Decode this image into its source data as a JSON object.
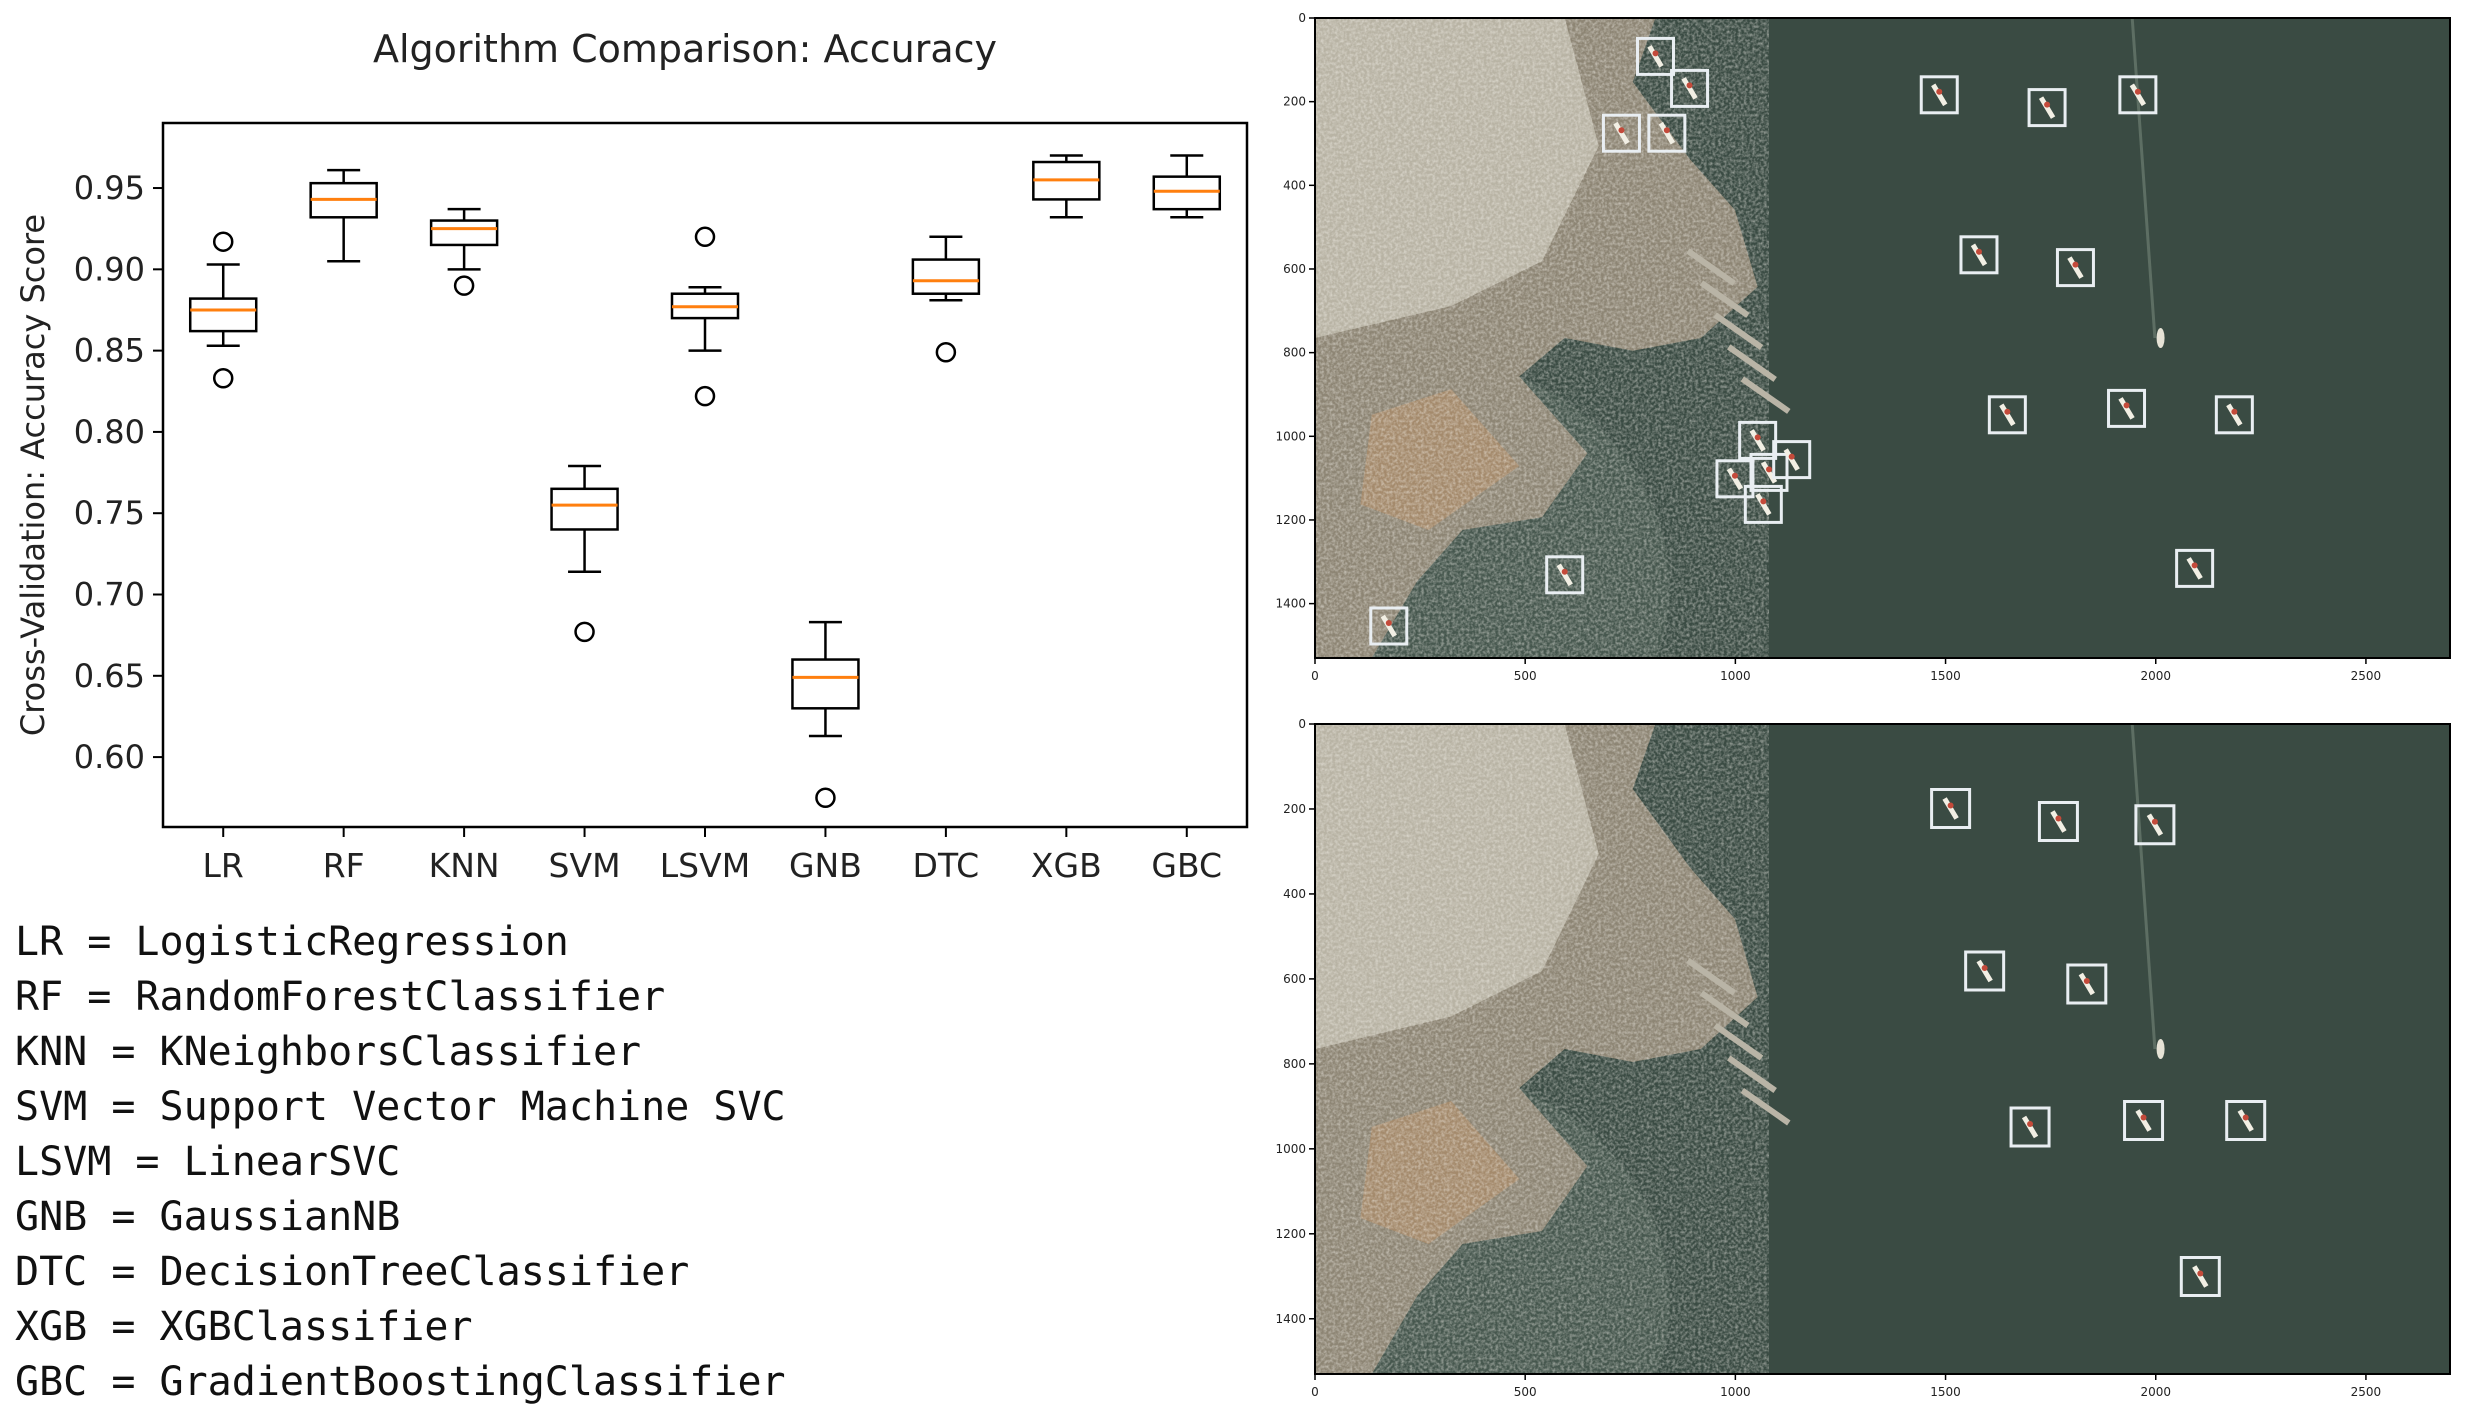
{
  "chart_data": [
    {
      "type": "box",
      "title": "Algorithm Comparison: Accuracy",
      "xlabel": "",
      "ylabel": "Cross-Validation: Accuracy Score",
      "categories": [
        "LR",
        "RF",
        "KNN",
        "SVM",
        "LSVM",
        "GNB",
        "DTC",
        "XGB",
        "GBC"
      ],
      "yticks": [
        "0.60",
        "0.65",
        "0.70",
        "0.75",
        "0.80",
        "0.85",
        "0.90",
        "0.95"
      ],
      "ylim": [
        0.557,
        0.99
      ],
      "boxes": [
        {
          "name": "LR",
          "whislo": 0.853,
          "q1": 0.862,
          "med": 0.875,
          "q3": 0.882,
          "whishi": 0.903,
          "fliers": [
            0.917,
            0.833
          ]
        },
        {
          "name": "RF",
          "whislo": 0.905,
          "q1": 0.932,
          "med": 0.943,
          "q3": 0.953,
          "whishi": 0.961,
          "fliers": []
        },
        {
          "name": "KNN",
          "whislo": 0.9,
          "q1": 0.915,
          "med": 0.925,
          "q3": 0.93,
          "whishi": 0.937,
          "fliers": [
            0.89
          ]
        },
        {
          "name": "SVM",
          "whislo": 0.714,
          "q1": 0.74,
          "med": 0.755,
          "q3": 0.765,
          "whishi": 0.779,
          "fliers": [
            0.677
          ]
        },
        {
          "name": "LSVM",
          "whislo": 0.85,
          "q1": 0.87,
          "med": 0.877,
          "q3": 0.885,
          "whishi": 0.889,
          "fliers": [
            0.92,
            0.822
          ]
        },
        {
          "name": "GNB",
          "whislo": 0.613,
          "q1": 0.63,
          "med": 0.649,
          "q3": 0.66,
          "whishi": 0.683,
          "fliers": [
            0.575
          ]
        },
        {
          "name": "DTC",
          "whislo": 0.881,
          "q1": 0.885,
          "med": 0.893,
          "q3": 0.906,
          "whishi": 0.92,
          "fliers": [
            0.849
          ]
        },
        {
          "name": "XGB",
          "whislo": 0.932,
          "q1": 0.943,
          "med": 0.955,
          "q3": 0.966,
          "whishi": 0.97,
          "fliers": []
        },
        {
          "name": "GBC",
          "whislo": 0.932,
          "q1": 0.937,
          "med": 0.948,
          "q3": 0.957,
          "whishi": 0.97,
          "fliers": []
        }
      ],
      "colors": {
        "box": "#000000",
        "median": "#ff7f0e"
      }
    },
    {
      "type": "image",
      "description_tag": "satellite-detections-top",
      "xticks": [
        "0",
        "500",
        "1000",
        "1500",
        "2000",
        "2500"
      ],
      "yticks": [
        "0",
        "200",
        "400",
        "600",
        "800",
        "1000",
        "1200",
        "1400"
      ]
    },
    {
      "type": "image",
      "description_tag": "satellite-detections-bottom",
      "xticks": [
        "0",
        "500",
        "1000",
        "1500",
        "2000",
        "2500"
      ],
      "yticks": [
        "0",
        "200",
        "400",
        "600",
        "800",
        "1000",
        "1200",
        "1400"
      ]
    }
  ],
  "legend": [
    "LR = LogisticRegression",
    "RF = RandomForestClassifier",
    "KNN = KNeighborsClassifier",
    "SVM = Support Vector Machine SVC",
    "LSVM = LinearSVC",
    "GNB = GaussianNB",
    "DTC = DecisionTreeClassifier",
    "XGB = XGBClassifier",
    "GBC = GradientBoostingClassifier"
  ],
  "image_colors": {
    "land": "#8d8574",
    "water": "#3a4b43",
    "urban": "#b8b3a4",
    "sand": "#a48a6c",
    "box": "#e9eef2",
    "frame": "#000000"
  }
}
